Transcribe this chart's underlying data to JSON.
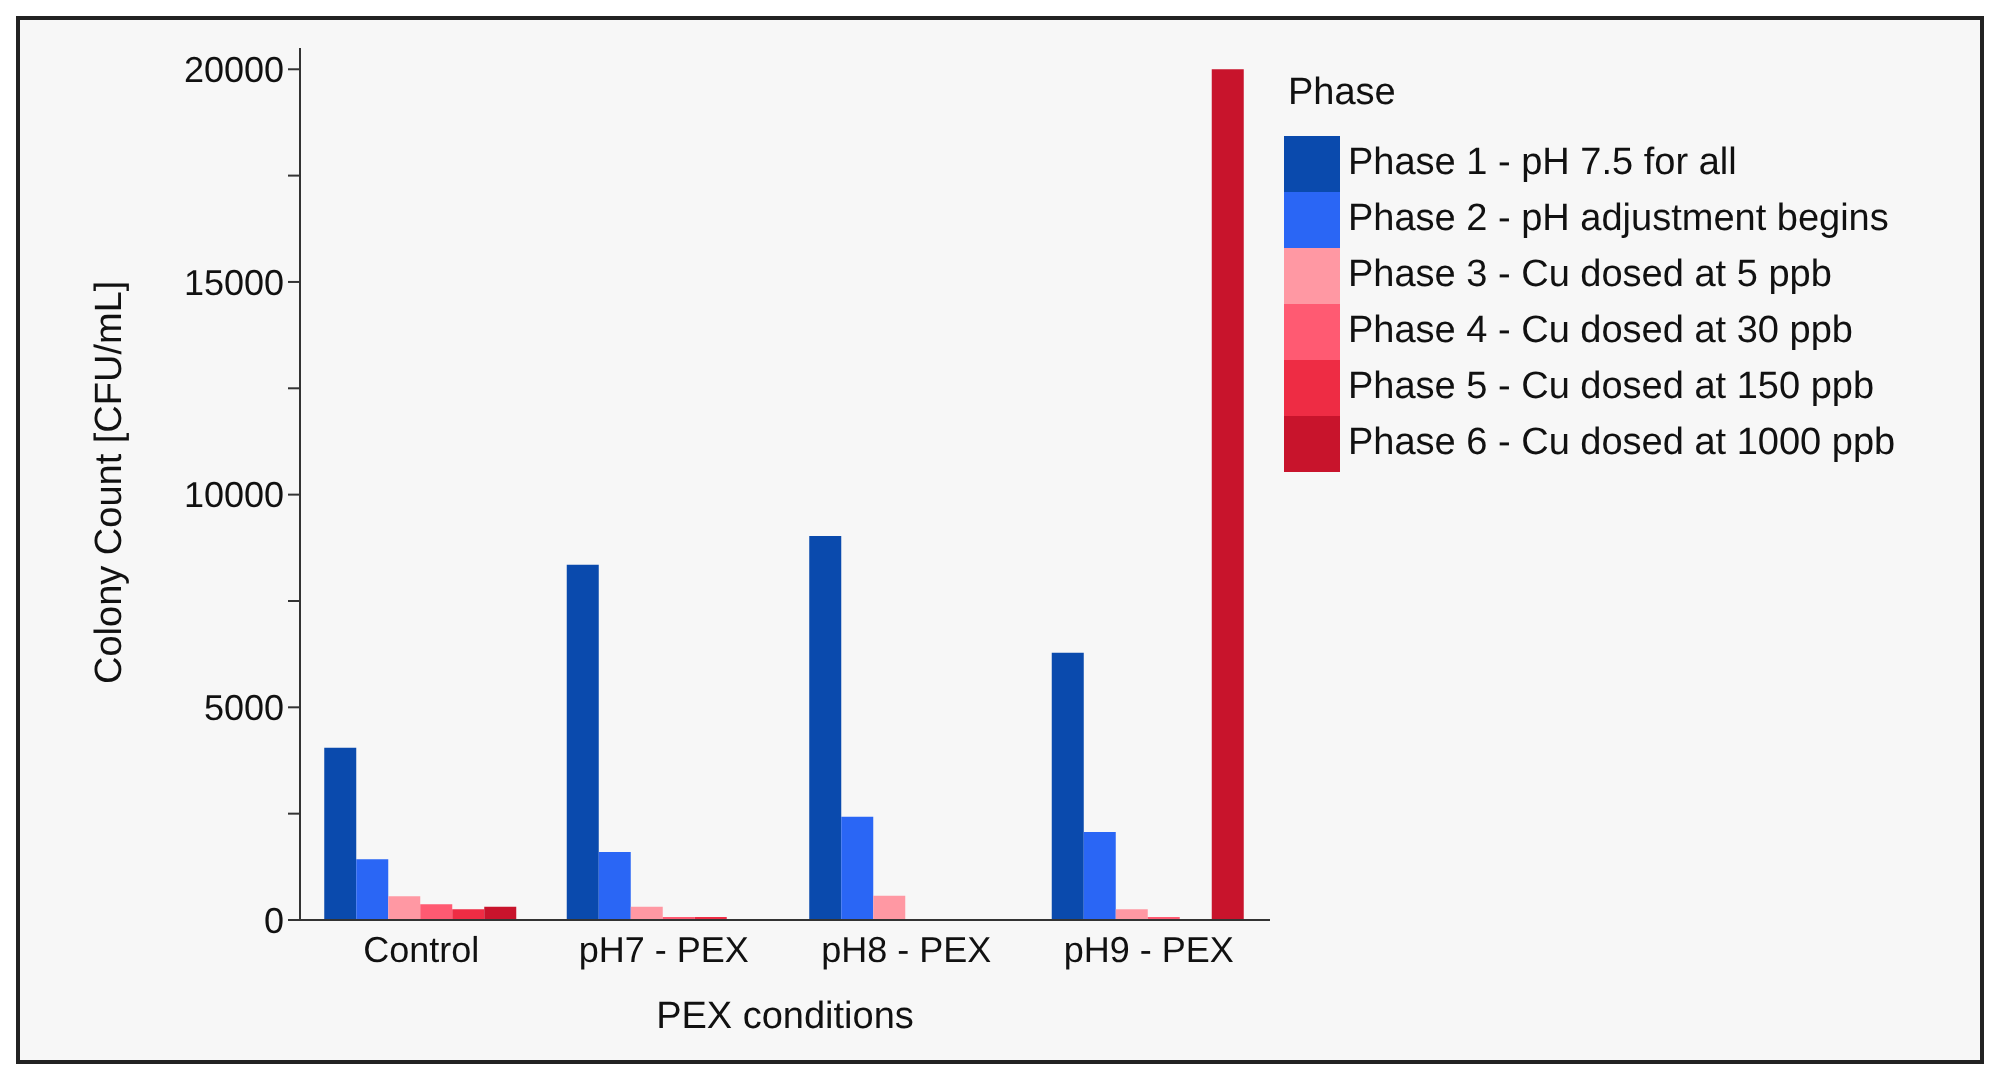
{
  "chart_data": {
    "type": "bar",
    "xlabel": "PEX conditions",
    "ylabel": "Colony Count [CFU/mL]",
    "legend_title": "Phase",
    "legend": "right",
    "grid": false,
    "categories": [
      "Control",
      "pH7 - PEX",
      "pH8 - PEX",
      "pH9 - PEX"
    ],
    "ylim": [
      0,
      20500
    ],
    "yticks": [
      0,
      {
        "value": 2500,
        "label": null
      },
      5000,
      {
        "value": 7500,
        "label": null
      },
      10000,
      {
        "value": 12500,
        "label": null
      },
      15000,
      {
        "value": 17500,
        "label": null
      },
      20000
    ],
    "series": [
      {
        "name": "Phase 1 - pH 7.5 for all",
        "color": "#0a4aad",
        "values": [
          4050,
          8350,
          9030,
          6280
        ]
      },
      {
        "name": "Phase 2 - pH adjustment begins",
        "color": "#2a66f5",
        "values": [
          1430,
          1600,
          2430,
          2070
        ]
      },
      {
        "name": "Phase 3 - Cu dosed at 5 ppb",
        "color": "#ff98a3",
        "values": [
          560,
          310,
          570,
          250
        ]
      },
      {
        "name": "Phase 4 - Cu dosed at 30 ppb",
        "color": "#ff5a72",
        "values": [
          370,
          70,
          0,
          70
        ]
      },
      {
        "name": "Phase 5 - Cu dosed at 150 ppb",
        "color": "#ee2c44",
        "values": [
          250,
          70,
          0,
          0
        ]
      },
      {
        "name": "Phase 6 - Cu dosed at 1000 ppb",
        "color": "#c8142c",
        "values": [
          310,
          0,
          0,
          20000
        ]
      }
    ]
  }
}
